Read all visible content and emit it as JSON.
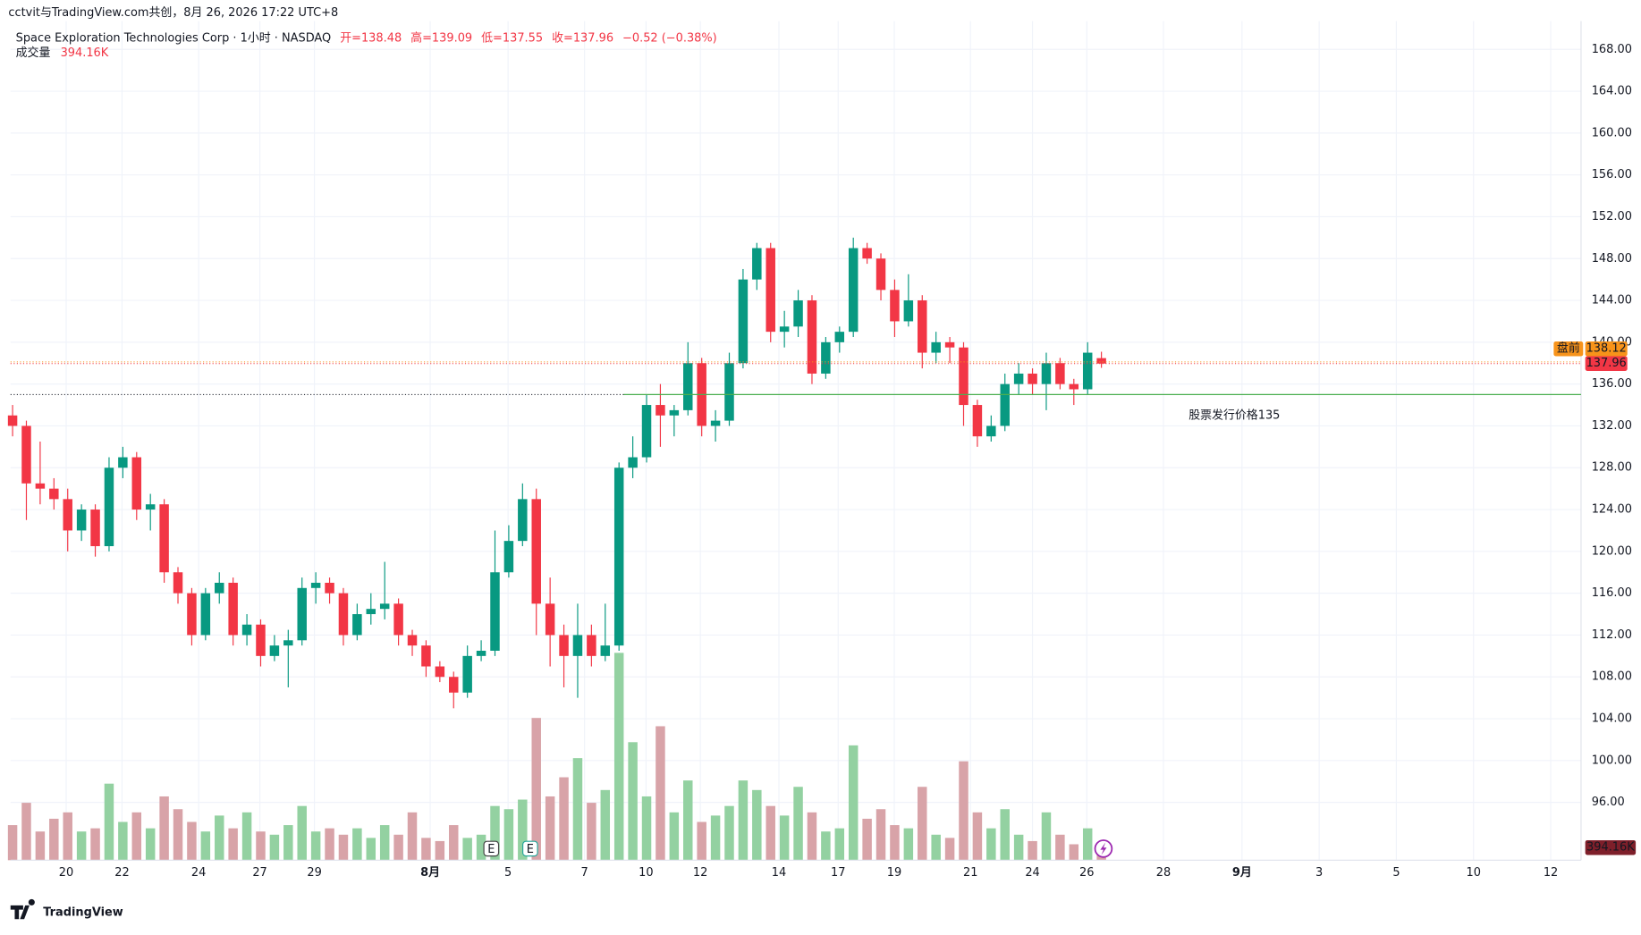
{
  "chart_data": {
    "type": "candlestick",
    "source_line": "cctvit与TradingView.com共创，8月 26, 2026 17:22 UTC+8",
    "symbol": "Space Exploration Technologies Corp · 1小时 · NASDAQ",
    "ohlc_legend": [
      "开=138.48",
      "高=139.09",
      "低=137.55",
      "收=137.96",
      "−0.52 (−0.38%)"
    ],
    "volume_legend": {
      "label": "成交量",
      "value_label": "394.16K"
    },
    "brand": "TradingView",
    "earnings_markers": [
      "E",
      "E"
    ],
    "up_color": "#089981",
    "down_color": "#f23645",
    "volume_up_color": "#93d1a1",
    "volume_down_color": "#d8a3a8",
    "candles": [
      [
        133,
        134,
        131,
        132
      ],
      [
        132,
        132.5,
        123,
        126.5
      ],
      [
        126.5,
        130.5,
        124.5,
        126
      ],
      [
        126,
        127,
        124,
        125
      ],
      [
        125,
        126,
        120,
        122
      ],
      [
        122,
        124.5,
        121,
        124
      ],
      [
        124,
        124.5,
        119.5,
        120.5
      ],
      [
        120.5,
        129,
        120,
        128
      ],
      [
        128,
        130,
        127,
        129
      ],
      [
        129,
        129.5,
        123,
        124
      ],
      [
        124,
        125.5,
        122,
        124.5
      ],
      [
        124.5,
        125,
        117,
        118
      ],
      [
        118,
        118.5,
        115,
        116
      ],
      [
        116,
        116.5,
        111,
        112
      ],
      [
        112,
        116.5,
        111.5,
        116
      ],
      [
        116,
        118,
        115,
        117
      ],
      [
        117,
        117.5,
        111,
        112
      ],
      [
        112,
        114,
        111,
        113
      ],
      [
        113,
        113.5,
        109,
        110
      ],
      [
        110,
        112,
        109.5,
        111
      ],
      [
        111,
        112.5,
        107,
        111.5
      ],
      [
        111.5,
        117.5,
        111,
        116.5
      ],
      [
        116.5,
        118,
        115,
        117
      ],
      [
        117,
        117.5,
        115,
        116
      ],
      [
        116,
        116.5,
        111,
        112
      ],
      [
        112,
        115,
        111.5,
        114
      ],
      [
        114,
        116,
        113,
        114.5
      ],
      [
        114.5,
        119,
        113.5,
        115
      ],
      [
        115,
        115.5,
        111,
        112
      ],
      [
        112,
        112.5,
        110,
        111
      ],
      [
        111,
        111.5,
        108,
        109
      ],
      [
        109,
        109.5,
        107.5,
        108
      ],
      [
        108,
        108.5,
        105,
        106.5
      ],
      [
        106.5,
        111,
        106,
        110
      ],
      [
        110,
        111.5,
        109.5,
        110.5
      ],
      [
        110.5,
        122,
        110,
        118
      ],
      [
        118,
        122.5,
        117.5,
        121
      ],
      [
        121,
        126.5,
        120.5,
        125
      ],
      [
        125,
        126,
        112,
        115
      ],
      [
        115,
        117.5,
        109,
        112
      ],
      [
        112,
        113,
        107,
        110
      ],
      [
        110,
        115,
        106,
        112
      ],
      [
        112,
        113,
        109,
        110
      ],
      [
        110,
        115,
        109.5,
        111
      ],
      [
        111,
        128.5,
        110.5,
        128
      ],
      [
        128,
        131,
        127,
        129
      ],
      [
        129,
        135,
        128.5,
        134
      ],
      [
        134,
        136,
        130,
        133
      ],
      [
        133,
        134,
        131,
        133.5
      ],
      [
        133.5,
        140,
        133,
        138
      ],
      [
        138,
        138.5,
        131,
        132
      ],
      [
        132,
        133.5,
        130.5,
        132.5
      ],
      [
        132.5,
        139,
        132,
        138
      ],
      [
        138,
        147,
        137.5,
        146
      ],
      [
        146,
        149.5,
        145,
        149
      ],
      [
        149,
        149.5,
        140,
        141
      ],
      [
        141,
        143,
        139.5,
        141.5
      ],
      [
        141.5,
        145,
        140.5,
        144
      ],
      [
        144,
        144.5,
        136,
        137
      ],
      [
        137,
        140.5,
        136.5,
        140
      ],
      [
        140,
        141.5,
        139,
        141
      ],
      [
        141,
        150,
        140.5,
        149
      ],
      [
        149,
        149.5,
        147.5,
        148
      ],
      [
        148,
        148.5,
        144,
        145
      ],
      [
        145,
        146,
        140.5,
        142
      ],
      [
        142,
        146.5,
        141.5,
        144
      ],
      [
        144,
        144.5,
        137.5,
        139
      ],
      [
        139,
        141,
        138,
        140
      ],
      [
        140,
        140.5,
        138,
        139.5
      ],
      [
        139.5,
        140,
        132,
        134
      ],
      [
        134,
        134.5,
        130,
        131
      ],
      [
        131,
        133,
        130.5,
        132
      ],
      [
        132,
        137,
        131.5,
        136
      ],
      [
        136,
        138,
        135,
        137
      ],
      [
        137,
        137.5,
        135,
        136
      ],
      [
        136,
        139,
        133.5,
        138
      ],
      [
        138,
        138.5,
        135.5,
        136
      ],
      [
        136,
        136.5,
        134,
        135.5
      ],
      [
        135.5,
        140,
        135,
        139
      ],
      [
        138.48,
        139.09,
        137.55,
        137.96
      ]
    ],
    "volumes": [
      1100000,
      1800000,
      900000,
      1300000,
      1500000,
      900000,
      1000000,
      2400000,
      1200000,
      1500000,
      1000000,
      2000000,
      1600000,
      1200000,
      900000,
      1400000,
      1000000,
      1500000,
      900000,
      800000,
      1100000,
      1700000,
      900000,
      1000000,
      800000,
      1000000,
      700000,
      1100000,
      800000,
      1500000,
      700000,
      600000,
      1100000,
      700000,
      800000,
      1700000,
      1600000,
      1900000,
      4460000,
      2000000,
      2600000,
      3200000,
      1800000,
      2200000,
      6500000,
      3700000,
      2000000,
      4200000,
      1500000,
      2500000,
      1200000,
      1400000,
      1700000,
      2500000,
      2200000,
      1700000,
      1400000,
      2300000,
      1500000,
      900000,
      1000000,
      3600000,
      1300000,
      1600000,
      1100000,
      1000000,
      2300000,
      800000,
      700000,
      3100000,
      1500000,
      1000000,
      1600000,
      800000,
      600000,
      1500000,
      800000,
      500000,
      1000000,
      394160
    ],
    "volume_value_label": "394.16K",
    "volume_ylim": [
      0,
      26300000
    ],
    "xlim": [
      -0.15,
      113.8
    ],
    "xticks": [
      {
        "value": 3.89,
        "label": "20"
      },
      {
        "value": 7.94,
        "label": "22"
      },
      {
        "value": 13.5,
        "label": "24"
      },
      {
        "value": 17.94,
        "label": "27"
      },
      {
        "value": 21.9,
        "label": "29"
      },
      {
        "value": 30.3,
        "label": "8月"
      },
      {
        "value": 35.95,
        "label": "5"
      },
      {
        "value": 41.5,
        "label": "7"
      },
      {
        "value": 45.96,
        "label": "10"
      },
      {
        "value": 49.9,
        "label": "12"
      },
      {
        "value": 55.6,
        "label": "14"
      },
      {
        "value": 59.9,
        "label": "17"
      },
      {
        "value": 63.97,
        "label": "19"
      },
      {
        "value": 69.5,
        "label": "21"
      },
      {
        "value": 74,
        "label": "24"
      },
      {
        "value": 77.94,
        "label": "26"
      },
      {
        "value": 83.5,
        "label": "28"
      },
      {
        "value": 89.2,
        "label": "9月"
      },
      {
        "value": 94.8,
        "label": "3"
      },
      {
        "value": 100.4,
        "label": "5"
      },
      {
        "value": 106,
        "label": "10"
      },
      {
        "value": 111.6,
        "label": "12"
      }
    ],
    "ylim": [
      90.47,
      170.7
    ],
    "yticks": [
      {
        "value": 96,
        "label": "96.00"
      },
      {
        "value": 100,
        "label": "100.00"
      },
      {
        "value": 104,
        "label": "104.00"
      },
      {
        "value": 108,
        "label": "108.00"
      },
      {
        "value": 112,
        "label": "112.00"
      },
      {
        "value": 116,
        "label": "116.00"
      },
      {
        "value": 120,
        "label": "120.00"
      },
      {
        "value": 124,
        "label": "124.00"
      },
      {
        "value": 128,
        "label": "128.00"
      },
      {
        "value": 132,
        "label": "132.00"
      },
      {
        "value": 136,
        "label": "136.00"
      },
      {
        "value": 140,
        "label": "140.00"
      },
      {
        "value": 144,
        "label": "144.00"
      },
      {
        "value": 148,
        "label": "148.00"
      },
      {
        "value": 152,
        "label": "152.00"
      },
      {
        "value": 156,
        "label": "156.00"
      },
      {
        "value": 160,
        "label": "160.00"
      },
      {
        "value": 164,
        "label": "164.00"
      },
      {
        "value": 168,
        "label": "168.00"
      }
    ],
    "grid": true,
    "last_price": {
      "value": 137.96,
      "label": "137.96",
      "color": "#f23645"
    },
    "premarket": {
      "tag": "盘前",
      "value": 138.12,
      "label": "138.12",
      "color": "#f7931a"
    },
    "issue_price": {
      "value": 135,
      "text": "股票发行价格135",
      "color": "#4caf50"
    }
  }
}
